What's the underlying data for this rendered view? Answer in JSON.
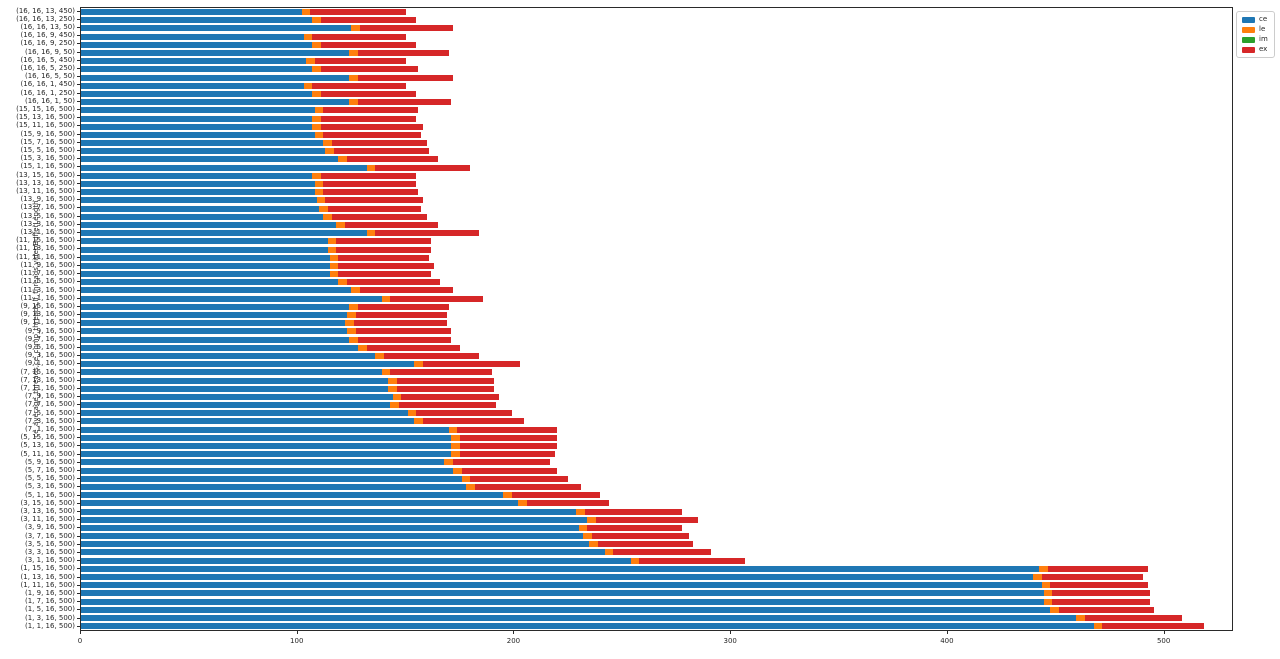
{
  "axes": {
    "ylabel": "ce_average_threads,ce_comp_threads,lf_threads,videoBufferLength",
    "xlabel": ""
  },
  "legend": {
    "entries": [
      {
        "label": "ce",
        "color": "#1f77b4"
      },
      {
        "label": "le",
        "color": "#ff7f0e"
      },
      {
        "label": "im",
        "color": "#2ca02c"
      },
      {
        "label": "ex",
        "color": "#d62728"
      }
    ],
    "position": "upper-right-outside"
  },
  "chart_data": {
    "type": "bar",
    "orientation": "horizontal",
    "stacked": true,
    "title": "",
    "xlabel": "",
    "ylabel": "ce_average_threads,ce_comp_threads,lf_threads,videoBufferLength",
    "xlim": [
      0,
      532
    ],
    "xticks": [
      0,
      100,
      200,
      300,
      400,
      500
    ],
    "grid": false,
    "legend_position": "upper right",
    "categories": [
      "(16, 16, 13, 450)",
      "(16, 16, 13, 250)",
      "(16, 16, 13, 50)",
      "(16, 16, 9, 450)",
      "(16, 16, 9, 250)",
      "(16, 16, 9, 50)",
      "(16, 16, 5, 450)",
      "(16, 16, 5, 250)",
      "(16, 16, 5, 50)",
      "(16, 16, 1, 450)",
      "(16, 16, 1, 250)",
      "(16, 16, 1, 50)",
      "(15, 15, 16, 500)",
      "(15, 13, 16, 500)",
      "(15, 11, 16, 500)",
      "(15, 9, 16, 500)",
      "(15, 7, 16, 500)",
      "(15, 5, 16, 500)",
      "(15, 3, 16, 500)",
      "(15, 1, 16, 500)",
      "(13, 15, 16, 500)",
      "(13, 13, 16, 500)",
      "(13, 11, 16, 500)",
      "(13, 9, 16, 500)",
      "(13, 7, 16, 500)",
      "(13, 5, 16, 500)",
      "(13, 3, 16, 500)",
      "(13, 1, 16, 500)",
      "(11, 15, 16, 500)",
      "(11, 13, 16, 500)",
      "(11, 11, 16, 500)",
      "(11, 9, 16, 500)",
      "(11, 7, 16, 500)",
      "(11, 5, 16, 500)",
      "(11, 3, 16, 500)",
      "(11, 1, 16, 500)",
      "(9, 15, 16, 500)",
      "(9, 13, 16, 500)",
      "(9, 11, 16, 500)",
      "(9, 9, 16, 500)",
      "(9, 7, 16, 500)",
      "(9, 5, 16, 500)",
      "(9, 3, 16, 500)",
      "(9, 1, 16, 500)",
      "(7, 15, 16, 500)",
      "(7, 13, 16, 500)",
      "(7, 11, 16, 500)",
      "(7, 9, 16, 500)",
      "(7, 7, 16, 500)",
      "(7, 5, 16, 500)",
      "(7, 3, 16, 500)",
      "(7, 1, 16, 500)",
      "(5, 15, 16, 500)",
      "(5, 13, 16, 500)",
      "(5, 11, 16, 500)",
      "(5, 9, 16, 500)",
      "(5, 7, 16, 500)",
      "(5, 5, 16, 500)",
      "(5, 3, 16, 500)",
      "(5, 1, 16, 500)",
      "(3, 15, 16, 500)",
      "(3, 13, 16, 500)",
      "(3, 11, 16, 500)",
      "(3, 9, 16, 500)",
      "(3, 7, 16, 500)",
      "(3, 5, 16, 500)",
      "(3, 3, 16, 500)",
      "(3, 1, 16, 500)",
      "(1, 15, 16, 500)",
      "(1, 13, 16, 500)",
      "(1, 11, 16, 500)",
      "(1, 9, 16, 500)",
      "(1, 7, 16, 500)",
      "(1, 5, 16, 500)",
      "(1, 3, 16, 500)",
      "(1, 1, 16, 500)"
    ],
    "series": [
      {
        "name": "ce",
        "color": "#1f77b4",
        "values": [
          102,
          107,
          125,
          103,
          107,
          124,
          104,
          107,
          124,
          103,
          107,
          124,
          108,
          107,
          107,
          108,
          112,
          113,
          119,
          132,
          107,
          108,
          108,
          109,
          110,
          112,
          118,
          132,
          114,
          114,
          115,
          115,
          115,
          119,
          125,
          139,
          124,
          123,
          122,
          123,
          124,
          128,
          136,
          154,
          139,
          142,
          142,
          144,
          143,
          151,
          154,
          170,
          171,
          171,
          171,
          168,
          172,
          176,
          178,
          195,
          202,
          229,
          234,
          230,
          232,
          235,
          242,
          254,
          443,
          440,
          444,
          445,
          445,
          448,
          460,
          468
        ]
      },
      {
        "name": "le",
        "color": "#ff7f0e",
        "values": [
          4,
          4,
          4,
          4,
          4,
          4,
          4,
          4,
          4,
          4,
          4,
          4,
          4,
          4,
          4,
          4,
          4,
          4,
          4,
          4,
          4,
          4,
          4,
          4,
          4,
          4,
          4,
          4,
          4,
          4,
          4,
          4,
          4,
          4,
          4,
          4,
          4,
          4,
          4,
          4,
          4,
          4,
          4,
          4,
          4,
          4,
          4,
          4,
          4,
          4,
          4,
          4,
          4,
          4,
          4,
          4,
          4,
          4,
          4,
          4,
          4,
          4,
          4,
          4,
          4,
          4,
          4,
          4,
          4,
          4,
          4,
          4,
          4,
          4,
          4,
          4
        ]
      },
      {
        "name": "im",
        "color": "#2ca02c",
        "values": [
          0,
          0,
          0,
          0,
          0,
          0,
          0,
          0,
          0,
          0,
          0,
          0,
          0,
          0,
          0,
          0,
          0,
          0,
          0,
          0,
          0,
          0,
          0,
          0,
          0,
          0,
          0,
          0,
          0,
          0,
          0,
          0,
          0,
          0,
          0,
          0,
          0,
          0,
          0,
          0,
          0,
          0,
          0,
          0,
          0,
          0,
          0,
          0,
          0,
          0,
          0,
          0,
          0,
          0,
          0,
          0,
          0,
          0,
          0,
          0,
          0,
          0,
          0,
          0,
          0,
          0,
          0,
          0,
          0,
          0,
          0,
          0,
          0,
          0,
          0,
          0
        ]
      },
      {
        "name": "ex",
        "color": "#d62728",
        "values": [
          44,
          44,
          43,
          43,
          44,
          42,
          42,
          45,
          44,
          43,
          44,
          43,
          44,
          44,
          47,
          45,
          44,
          44,
          42,
          44,
          44,
          43,
          44,
          45,
          43,
          44,
          43,
          48,
          44,
          44,
          42,
          44,
          43,
          43,
          43,
          43,
          42,
          42,
          43,
          44,
          43,
          43,
          44,
          45,
          47,
          45,
          45,
          45,
          45,
          44,
          47,
          46,
          45,
          45,
          44,
          45,
          44,
          45,
          49,
          41,
          38,
          45,
          47,
          44,
          45,
          44,
          45,
          49,
          46,
          47,
          45,
          45,
          45,
          44,
          45,
          47
        ]
      }
    ]
  }
}
